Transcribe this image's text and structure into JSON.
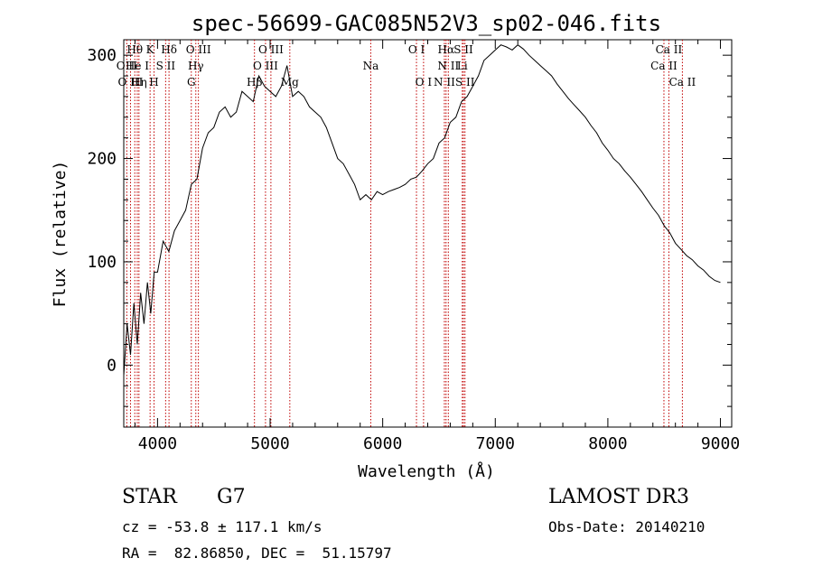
{
  "chart_data": {
    "type": "line",
    "title": "spec-56699-GAC085N52V3_sp02-046.fits",
    "xlabel": "Wavelength (Å)",
    "ylabel": "Flux (relative)",
    "xlim": [
      3700,
      9100
    ],
    "ylim": [
      -60,
      315
    ],
    "xticks": [
      4000,
      5000,
      6000,
      7000,
      8000,
      9000
    ],
    "yticks": [
      0,
      100,
      200,
      300
    ],
    "series": [
      {
        "name": "flux",
        "x": [
          3700,
          3730,
          3760,
          3790,
          3820,
          3850,
          3880,
          3910,
          3940,
          3970,
          4000,
          4050,
          4100,
          4150,
          4200,
          4250,
          4300,
          4350,
          4400,
          4450,
          4500,
          4550,
          4600,
          4650,
          4700,
          4750,
          4800,
          4850,
          4900,
          4950,
          5000,
          5050,
          5100,
          5150,
          5200,
          5250,
          5300,
          5350,
          5400,
          5450,
          5500,
          5550,
          5600,
          5650,
          5700,
          5750,
          5800,
          5850,
          5900,
          5950,
          6000,
          6050,
          6100,
          6150,
          6200,
          6250,
          6300,
          6350,
          6400,
          6450,
          6500,
          6550,
          6600,
          6650,
          6700,
          6750,
          6800,
          6850,
          6900,
          6950,
          7000,
          7050,
          7100,
          7150,
          7200,
          7250,
          7300,
          7350,
          7400,
          7450,
          7500,
          7550,
          7600,
          7650,
          7700,
          7750,
          7800,
          7850,
          7900,
          7950,
          8000,
          8050,
          8100,
          8150,
          8200,
          8250,
          8300,
          8350,
          8400,
          8450,
          8500,
          8550,
          8600,
          8650,
          8700,
          8750,
          8800,
          8850,
          8900,
          8950,
          9000
        ],
        "y": [
          -10,
          40,
          10,
          60,
          20,
          70,
          40,
          80,
          50,
          90,
          90,
          120,
          110,
          130,
          140,
          150,
          175,
          180,
          210,
          225,
          230,
          245,
          250,
          240,
          245,
          265,
          260,
          255,
          280,
          270,
          265,
          260,
          270,
          290,
          260,
          265,
          260,
          250,
          245,
          240,
          230,
          215,
          200,
          195,
          185,
          175,
          160,
          165,
          160,
          168,
          165,
          168,
          170,
          172,
          175,
          180,
          182,
          188,
          195,
          200,
          215,
          220,
          235,
          240,
          255,
          260,
          270,
          280,
          295,
          300,
          305,
          310,
          308,
          305,
          310,
          306,
          300,
          295,
          290,
          285,
          280,
          272,
          265,
          258,
          252,
          246,
          240,
          232,
          225,
          215,
          208,
          200,
          195,
          188,
          182,
          175,
          168,
          160,
          152,
          145,
          135,
          128,
          118,
          112,
          106,
          102,
          96,
          92,
          86,
          82,
          80
        ]
      }
    ],
    "spectral_lines": [
      {
        "name": "O II",
        "wavelength": 3727,
        "row": 1
      },
      {
        "name": "O III",
        "wavelength": 3760,
        "row": 2
      },
      {
        "name": "Hθ",
        "wavelength": 3798,
        "row": 0
      },
      {
        "name": "He I",
        "wavelength": 3820,
        "row": 1
      },
      {
        "name": "Hη",
        "wavelength": 3835,
        "row": 2
      },
      {
        "name": "K",
        "wavelength": 3934,
        "row": 0
      },
      {
        "name": "H",
        "wavelength": 3969,
        "row": 2
      },
      {
        "name": "S II",
        "wavelength": 4072,
        "row": 1
      },
      {
        "name": "Hδ",
        "wavelength": 4102,
        "row": 0
      },
      {
        "name": "G",
        "wavelength": 4300,
        "row": 2
      },
      {
        "name": "Hγ",
        "wavelength": 4340,
        "row": 1
      },
      {
        "name": "O III",
        "wavelength": 4363,
        "row": 0
      },
      {
        "name": "Hβ",
        "wavelength": 4861,
        "row": 2
      },
      {
        "name": "O III",
        "wavelength": 4959,
        "row": 1
      },
      {
        "name": "O III",
        "wavelength": 5007,
        "row": 0
      },
      {
        "name": "Mg",
        "wavelength": 5175,
        "row": 2
      },
      {
        "name": "Na",
        "wavelength": 5894,
        "row": 1
      },
      {
        "name": "O I",
        "wavelength": 6300,
        "row": 0
      },
      {
        "name": "O I",
        "wavelength": 6363,
        "row": 2
      },
      {
        "name": "N II",
        "wavelength": 6548,
        "row": 2
      },
      {
        "name": "Hα",
        "wavelength": 6563,
        "row": 0
      },
      {
        "name": "N II",
        "wavelength": 6583,
        "row": 1
      },
      {
        "name": "Li",
        "wavelength": 6707,
        "row": 1
      },
      {
        "name": "S II",
        "wavelength": 6717,
        "row": 0
      },
      {
        "name": "S II",
        "wavelength": 6731,
        "row": 2
      },
      {
        "name": "Ca II",
        "wavelength": 8498,
        "row": 1
      },
      {
        "name": "Ca II",
        "wavelength": 8542,
        "row": 0
      },
      {
        "name": "Ca II",
        "wavelength": 8662,
        "row": 2
      }
    ]
  },
  "footer": {
    "class_label": "STAR",
    "subclass": "G7",
    "survey": "LAMOST DR3",
    "cz_text": "cz = -53.8 ± 117.1 km/s",
    "obs_date": "Obs-Date: 20140210",
    "coords": "RA =  82.86850, DEC =  51.15797"
  },
  "colors": {
    "line_marker": "#c00000",
    "spectrum": "#000000"
  }
}
